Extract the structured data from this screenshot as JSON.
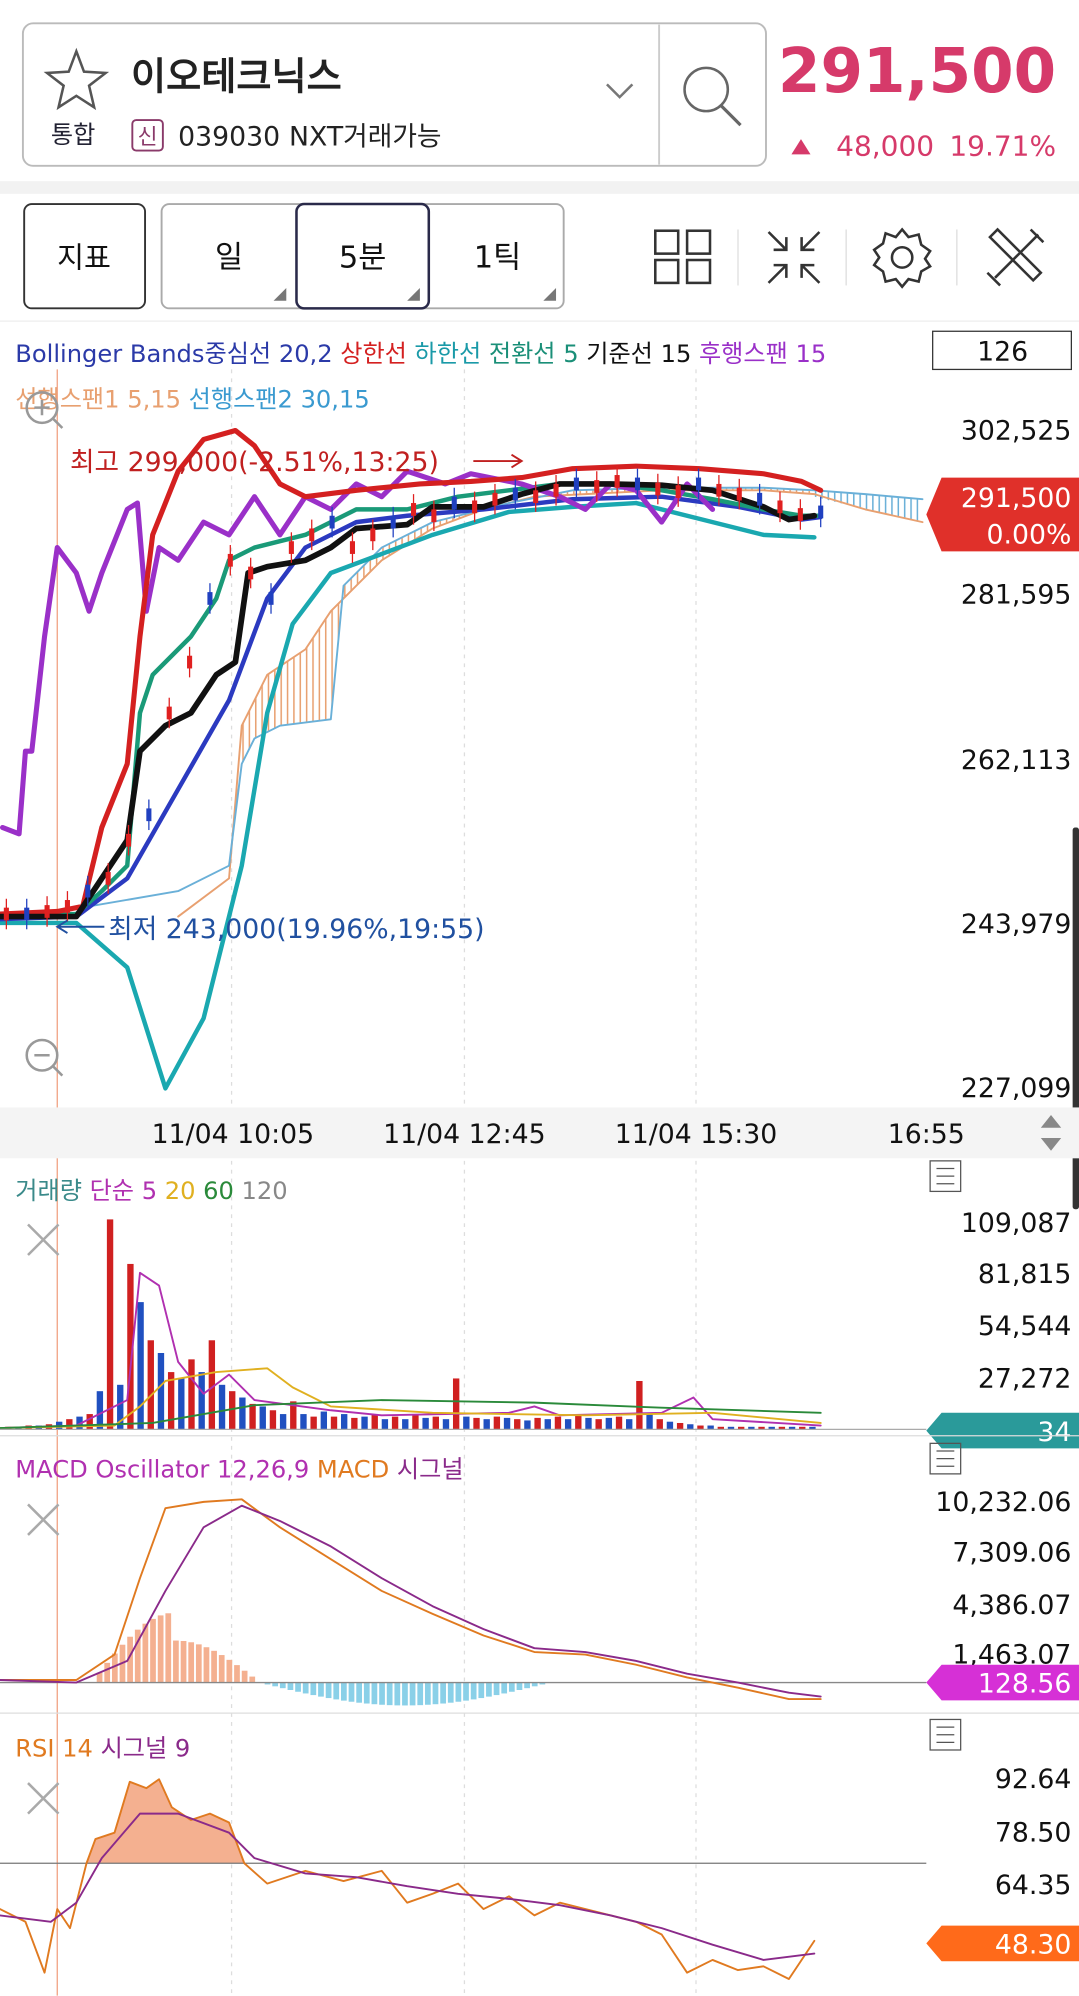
{
  "header": {
    "market": "통합",
    "stock_name": "이오테크닉스",
    "credit_badge": "신",
    "code": "039030",
    "nxt": "NXT거래가능",
    "price": "291,500",
    "change": "48,000",
    "change_rate": "19.71%"
  },
  "toolbar": {
    "indicator_button": "지표",
    "period_buttons": [
      "일",
      "5분",
      "1틱"
    ]
  },
  "price_chart": {
    "legend": [
      {
        "text": "Bollinger Bands중심선 20,2",
        "color": "#2b3aa8"
      },
      {
        "text": "상한선",
        "color": "#d42020"
      },
      {
        "text": "하한선",
        "color": "#1a9aa8"
      },
      {
        "text": "전환선 5",
        "color": "#1a8f78"
      },
      {
        "text": "기준선 15",
        "color": "#111111"
      },
      {
        "text": "후행스팬 15",
        "color": "#9a30c8"
      }
    ],
    "legend2": [
      {
        "text": "선행스팬1 5,15",
        "color": "#e8a070"
      },
      {
        "text": "선행스팬2 30,15",
        "color": "#3a9ad0"
      }
    ],
    "bar_count": "126",
    "y_labels": [
      "302,525",
      "281,595",
      "262,113",
      "243,979",
      "227,099"
    ],
    "high_annotation": "최고 299,000(-2.51%,13:25)",
    "low_annotation": "최저 243,000(19.96%,19:55)",
    "price_tag": "291,500",
    "price_tag_change": "0.00%",
    "x_labels": [
      "11/04 10:05",
      "11/04 12:45",
      "11/04 15:30",
      "16:55"
    ]
  },
  "volume_chart": {
    "legend": [
      {
        "text": "거래량",
        "color": "#3a8a8a"
      },
      {
        "text": "단순 5",
        "color": "#b030b0"
      },
      {
        "text": "20",
        "color": "#e0b020"
      },
      {
        "text": "60",
        "color": "#2a8a3a"
      },
      {
        "text": "120",
        "color": "#888888"
      }
    ],
    "y_labels": [
      "109,087",
      "81,815",
      "54,544",
      "27,272"
    ],
    "value_tag": "34"
  },
  "macd_chart": {
    "legend": [
      {
        "text": "MACD Oscillator 12,26,9",
        "color": "#b030b0"
      },
      {
        "text": "MACD",
        "color": "#e07a20"
      },
      {
        "text": "시그널",
        "color": "#8a2a8a"
      }
    ],
    "y_labels": [
      "10,232.06",
      "7,309.06",
      "4,386.07",
      "1,463.07"
    ],
    "value_tag": "128.56"
  },
  "rsi_chart": {
    "legend": [
      {
        "text": "RSI 14",
        "color": "#e07a20"
      },
      {
        "text": "시그널 9",
        "color": "#8a2a8a"
      }
    ],
    "y_labels": [
      "92.64",
      "78.50",
      "64.35"
    ],
    "value_tag": "48.30"
  }
}
